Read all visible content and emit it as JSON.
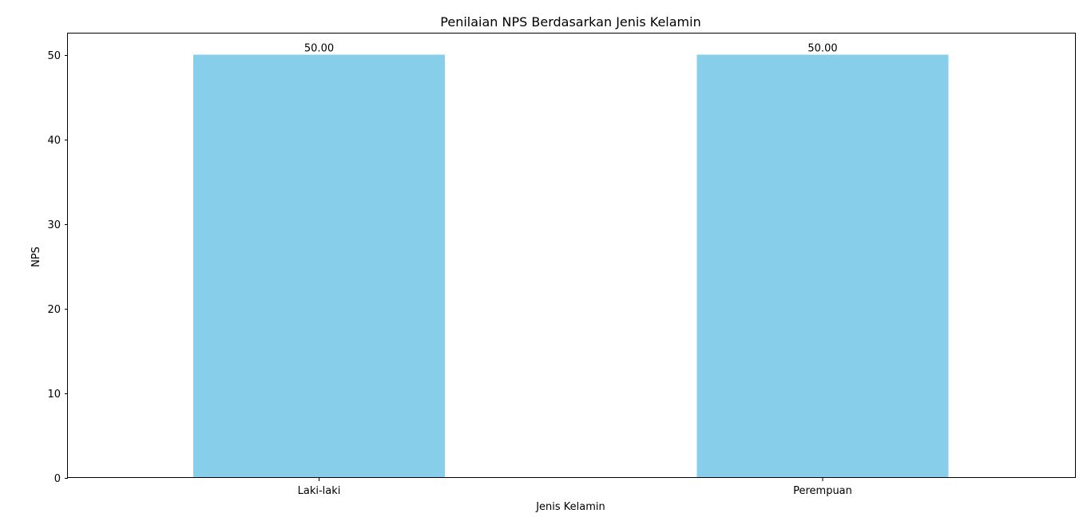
{
  "chart_data": {
    "type": "bar",
    "title": "Penilaian NPS Berdasarkan Jenis Kelamin",
    "xlabel": "Jenis Kelamin",
    "ylabel": "NPS",
    "categories": [
      "Laki-laki",
      "Perempuan"
    ],
    "values": [
      50.0,
      50.0
    ],
    "data_labels": [
      "50.00",
      "50.00"
    ],
    "ylim": [
      0,
      52.5
    ],
    "yticks": [
      0,
      10,
      20,
      30,
      40,
      50
    ],
    "grid": false,
    "legend": "none",
    "bar_color": "#87ceeb"
  }
}
